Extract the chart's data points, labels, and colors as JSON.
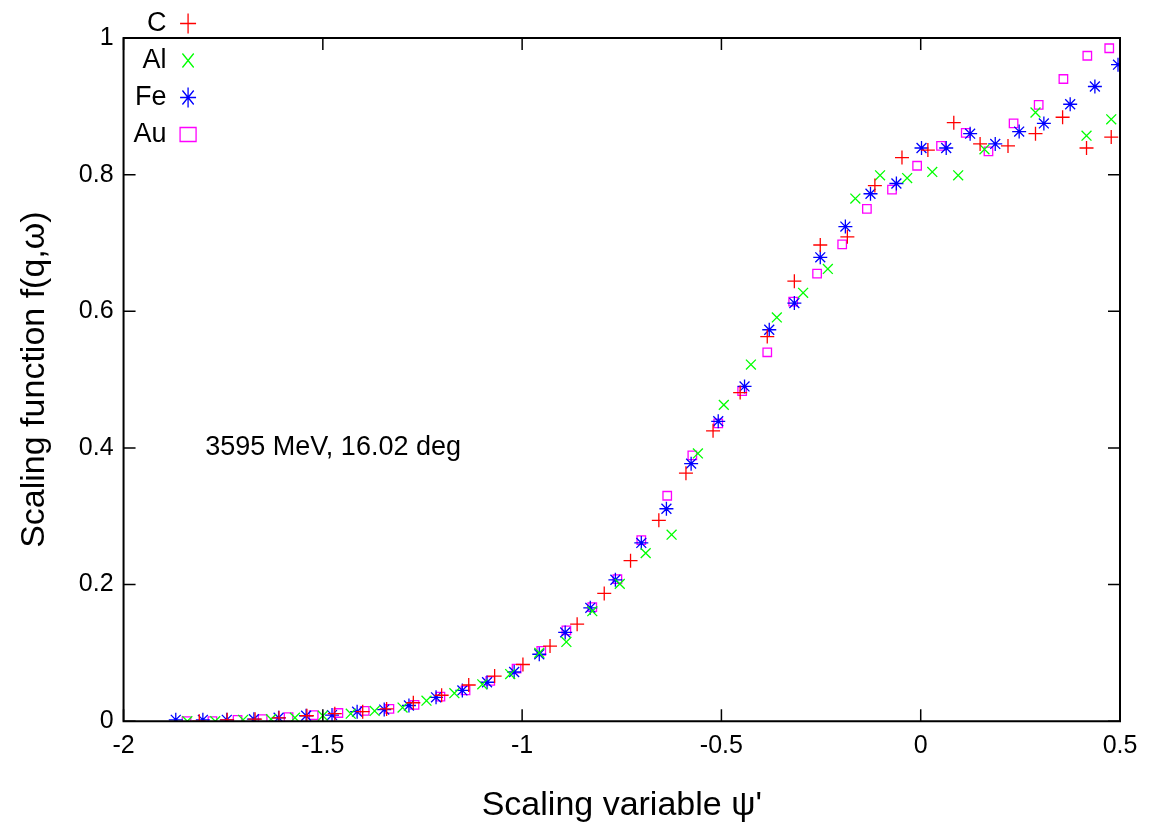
{
  "chart_data": {
    "type": "scatter",
    "xlabel": "Scaling variable ψ'",
    "ylabel": "Scaling function f(q,ω)",
    "annotations": [
      "3595 MeV, 16.02 deg"
    ],
    "xlim": [
      -2,
      0.5
    ],
    "xticks": [
      -2,
      -1.5,
      -1,
      -0.5,
      0,
      0.5
    ],
    "ylim": [
      0,
      1
    ],
    "yticks": [
      0,
      0.2,
      0.4,
      0.6,
      0.8,
      1
    ],
    "grid": false,
    "legend": "top left",
    "series": [
      {
        "name": "C",
        "color": "#ff0000",
        "marker": "cross",
        "x": [
          -1.81,
          -1.74,
          -1.67,
          -1.61,
          -1.54,
          -1.47,
          -1.4,
          -1.34,
          -1.273,
          -1.202,
          -1.134,
          -1.069,
          -0.998,
          -0.93,
          -0.862,
          -0.794,
          -0.728,
          -0.657,
          -0.589,
          -0.521,
          -0.453,
          -0.385,
          -0.317,
          -0.252,
          -0.184,
          -0.115,
          -0.047,
          0.018,
          0.083,
          0.149,
          0.219,
          0.288,
          0.356,
          0.416,
          0.478
        ],
        "values": [
          0,
          0.002,
          0.003,
          0.005,
          0.008,
          0.011,
          0.014,
          0.018,
          0.027,
          0.038,
          0.053,
          0.066,
          0.083,
          0.11,
          0.142,
          0.187,
          0.235,
          0.294,
          0.363,
          0.425,
          0.481,
          0.563,
          0.644,
          0.697,
          0.709,
          0.784,
          0.825,
          0.836,
          0.876,
          0.845,
          0.842,
          0.86,
          0.884,
          0.839,
          0.855
        ]
      },
      {
        "name": "Al",
        "color": "#00ff00",
        "marker": "cross",
        "x": [
          -1.84,
          -1.77,
          -1.7,
          -1.63,
          -1.57,
          -1.5,
          -1.43,
          -1.37,
          -1.3,
          -1.24,
          -1.17,
          -1.1,
          -1.03,
          -0.957,
          -0.889,
          -0.824,
          -0.755,
          -0.69,
          -0.625,
          -0.559,
          -0.494,
          -0.426,
          -0.361,
          -0.295,
          -0.233,
          -0.164,
          -0.102,
          -0.034,
          0.029,
          0.094,
          0.16,
          0.288,
          0.416,
          0.478
        ],
        "values": [
          0,
          0,
          0.002,
          0.003,
          0.005,
          0.008,
          0.011,
          0.015,
          0.02,
          0.03,
          0.041,
          0.054,
          0.069,
          0.1,
          0.116,
          0.161,
          0.201,
          0.246,
          0.273,
          0.392,
          0.463,
          0.522,
          0.591,
          0.627,
          0.662,
          0.765,
          0.799,
          0.795,
          0.804,
          0.799,
          0.837,
          0.891,
          0.857,
          0.881
        ]
      },
      {
        "name": "Fe",
        "color": "#0000ff",
        "marker": "cross",
        "x": [
          -1.869,
          -1.801,
          -1.741,
          -1.673,
          -1.611,
          -1.542,
          -1.477,
          -1.414,
          -1.346,
          -1.284,
          -1.216,
          -1.15,
          -1.088,
          -1.02,
          -0.957,
          -0.892,
          -0.829,
          -0.766,
          -0.701,
          -0.638,
          -0.576,
          -0.508,
          -0.442,
          -0.38,
          -0.317,
          -0.252,
          -0.189,
          -0.126,
          -0.061,
          0.002,
          0.064,
          0.124,
          0.187,
          0.247,
          0.309,
          0.375,
          0.437,
          0.495
        ],
        "values": [
          0.002,
          0.002,
          0.002,
          0.003,
          0.005,
          0.008,
          0.009,
          0.014,
          0.017,
          0.023,
          0.035,
          0.045,
          0.057,
          0.072,
          0.098,
          0.13,
          0.166,
          0.207,
          0.261,
          0.311,
          0.377,
          0.439,
          0.49,
          0.573,
          0.612,
          0.679,
          0.724,
          0.772,
          0.787,
          0.839,
          0.839,
          0.86,
          0.845,
          0.863,
          0.875,
          0.903,
          0.929,
          0.961
        ]
      },
      {
        "name": "Au",
        "color": "#ff00ff",
        "marker": "square",
        "x": [
          -1.842,
          -1.777,
          -1.714,
          -1.651,
          -1.586,
          -1.523,
          -1.461,
          -1.395,
          -1.333,
          -1.27,
          -1.205,
          -1.142,
          -1.08,
          -1.014,
          -0.952,
          -0.889,
          -0.824,
          -0.761,
          -0.701,
          -0.636,
          -0.573,
          -0.508,
          -0.448,
          -0.385,
          -0.32,
          -0.26,
          -0.197,
          -0.135,
          -0.072,
          -0.009,
          0.051,
          0.113,
          0.17,
          0.233,
          0.296,
          0.358,
          0.418,
          0.473
        ],
        "values": [
          0,
          0,
          0.002,
          0.003,
          0.006,
          0.009,
          0.012,
          0.015,
          0.018,
          0.024,
          0.036,
          0.045,
          0.059,
          0.077,
          0.103,
          0.133,
          0.167,
          0.208,
          0.265,
          0.33,
          0.389,
          0.436,
          0.483,
          0.54,
          0.614,
          0.655,
          0.698,
          0.75,
          0.778,
          0.813,
          0.842,
          0.861,
          0.834,
          0.875,
          0.902,
          0.94,
          0.974,
          0.985
        ]
      }
    ]
  }
}
